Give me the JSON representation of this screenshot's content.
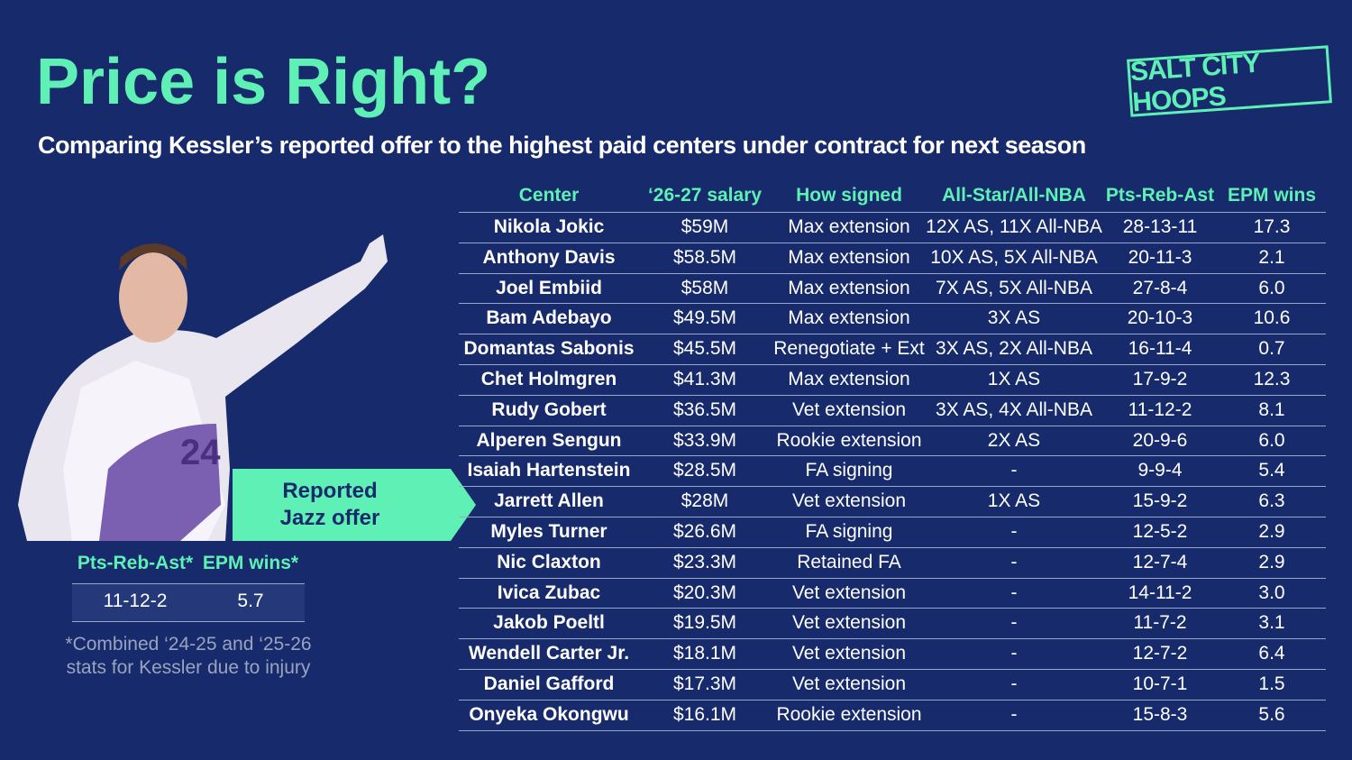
{
  "header": {
    "title": "Price is Right?",
    "subtitle": "Comparing Kessler’s reported offer to the highest paid centers under contract for next season",
    "logo": "SALT CITY HOOPS"
  },
  "table": {
    "columns": [
      "Center",
      "‘26-27 salary",
      "How signed",
      "All-Star/All-NBA",
      "Pts-Reb-Ast",
      "EPM wins"
    ],
    "rows": [
      [
        "Nikola Jokic",
        "$59M",
        "Max extension",
        "12X AS, 11X All-NBA",
        "28-13-11",
        "17.3"
      ],
      [
        "Anthony Davis",
        "$58.5M",
        "Max extension",
        "10X AS, 5X All-NBA",
        "20-11-3",
        "2.1"
      ],
      [
        "Joel Embiid",
        "$58M",
        "Max extension",
        "7X AS, 5X All-NBA",
        "27-8-4",
        "6.0"
      ],
      [
        "Bam Adebayo",
        "$49.5M",
        "Max extension",
        "3X AS",
        "20-10-3",
        "10.6"
      ],
      [
        "Domantas Sabonis",
        "$45.5M",
        "Renegotiate + Ext",
        "3X AS, 2X All-NBA",
        "16-11-4",
        "0.7"
      ],
      [
        "Chet Holmgren",
        "$41.3M",
        "Max extension",
        "1X AS",
        "17-9-2",
        "12.3"
      ],
      [
        "Rudy Gobert",
        "$36.5M",
        "Vet extension",
        "3X AS, 4X All-NBA",
        "11-12-2",
        "8.1"
      ],
      [
        "Alperen Sengun",
        "$33.9M",
        "Rookie extension",
        "2X AS",
        "20-9-6",
        "6.0"
      ],
      [
        "Isaiah Hartenstein",
        "$28.5M",
        "FA signing",
        "-",
        "9-9-4",
        "5.4"
      ],
      [
        "Jarrett Allen",
        "$28M",
        "Vet extension",
        "1X AS",
        "15-9-2",
        "6.3"
      ],
      [
        "Myles Turner",
        "$26.6M",
        "FA signing",
        "-",
        "12-5-2",
        "2.9"
      ],
      [
        "Nic Claxton",
        "$23.3M",
        "Retained FA",
        "-",
        "12-7-4",
        "2.9"
      ],
      [
        "Ivica Zubac",
        "$20.3M",
        "Vet extension",
        "-",
        "14-11-2",
        "3.0"
      ],
      [
        "Jakob Poeltl",
        "$19.5M",
        "Vet extension",
        "-",
        "11-7-2",
        "3.1"
      ],
      [
        "Wendell Carter Jr.",
        "$18.1M",
        "Vet extension",
        "-",
        "12-7-2",
        "6.4"
      ],
      [
        "Daniel Gafford",
        "$17.3M",
        "Vet extension",
        "-",
        "10-7-1",
        "1.5"
      ],
      [
        "Onyeka Okongwu",
        "$16.1M",
        "Rookie extension",
        "-",
        "15-8-3",
        "5.6"
      ]
    ]
  },
  "callout": "Reported Jazz offer",
  "kessler": {
    "columns": [
      "Pts-Reb-Ast*",
      "EPM wins*"
    ],
    "values": [
      "11-12-2",
      "5.7"
    ],
    "footnote": "*Combined ‘24-25 and ‘25-26 stats for Kessler due to injury"
  }
}
